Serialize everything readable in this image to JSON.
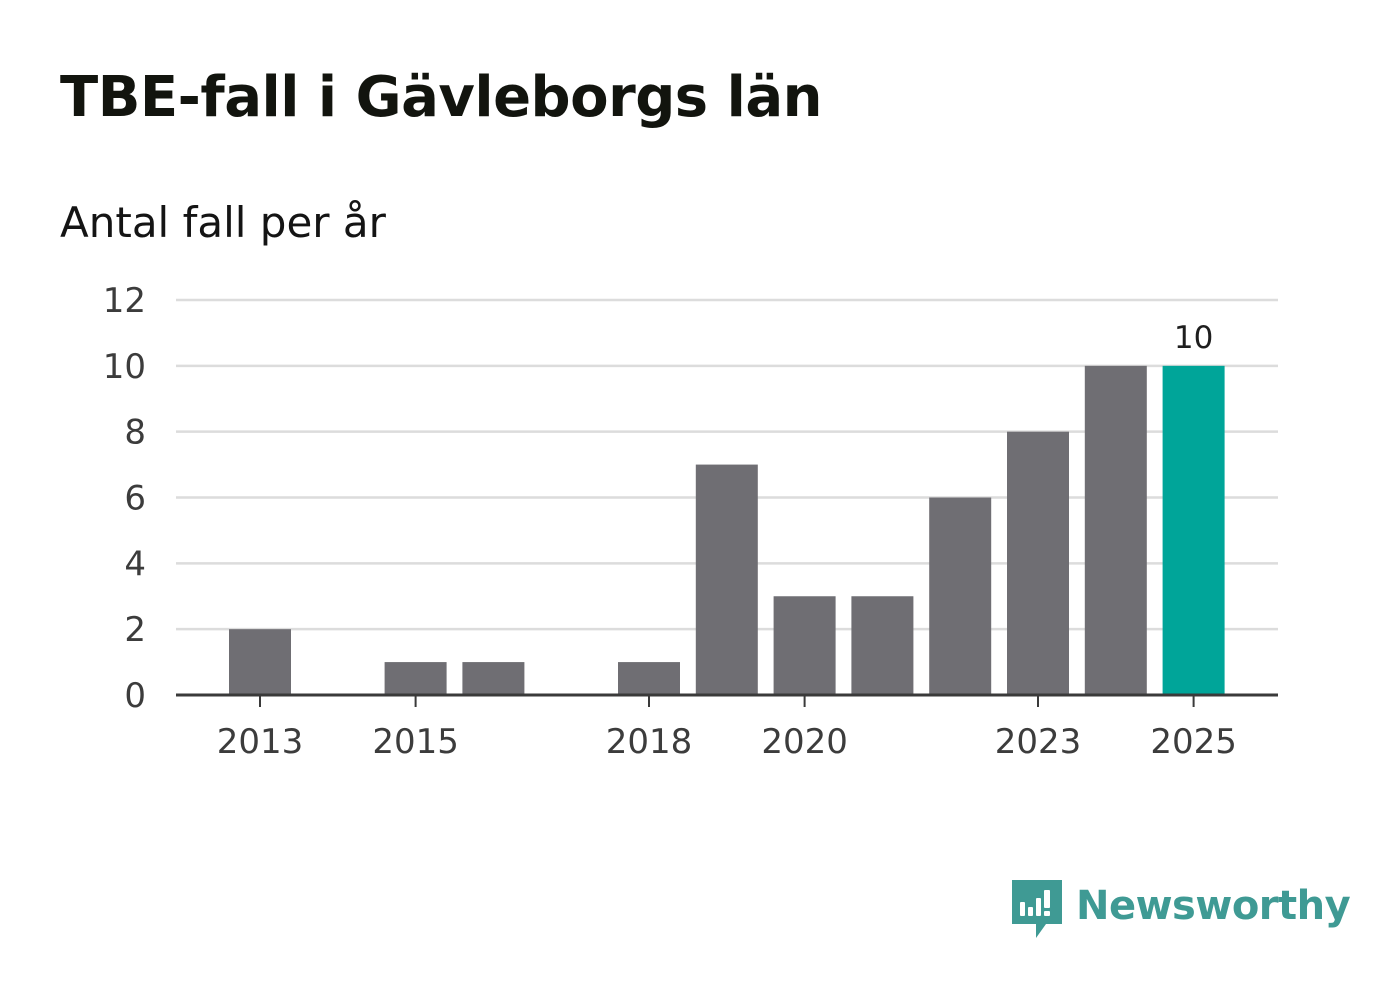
{
  "title": "TBE-fall i Gävleborgs län",
  "subtitle": "Antal fall per år",
  "brand": {
    "name": "Newsworthy",
    "icon": "newsworthy-logo-icon"
  },
  "colors": {
    "bar": "#6f6e73",
    "highlight": "#00a599",
    "grid": "#dcdcdc",
    "axis": "#3a3a3a",
    "brand": "#3f9a94"
  },
  "chart_data": {
    "type": "bar",
    "title": "TBE-fall i Gävleborgs län",
    "subtitle": "Antal fall per år",
    "xlabel": "",
    "ylabel": "",
    "categories": [
      2013,
      2014,
      2015,
      2016,
      2017,
      2018,
      2019,
      2020,
      2021,
      2022,
      2023,
      2024,
      2025
    ],
    "values": [
      2,
      0,
      1,
      1,
      0,
      1,
      7,
      3,
      3,
      6,
      8,
      10,
      10
    ],
    "highlight_index": 12,
    "x_tick_labels": [
      "2013",
      "2015",
      "2018",
      "2020",
      "2023",
      "2025"
    ],
    "y_ticks": [
      0,
      2,
      4,
      6,
      8,
      10,
      12
    ],
    "ylim": [
      0,
      12
    ],
    "grid": true,
    "data_labels": [
      {
        "category": 2025,
        "text": "10"
      }
    ]
  }
}
